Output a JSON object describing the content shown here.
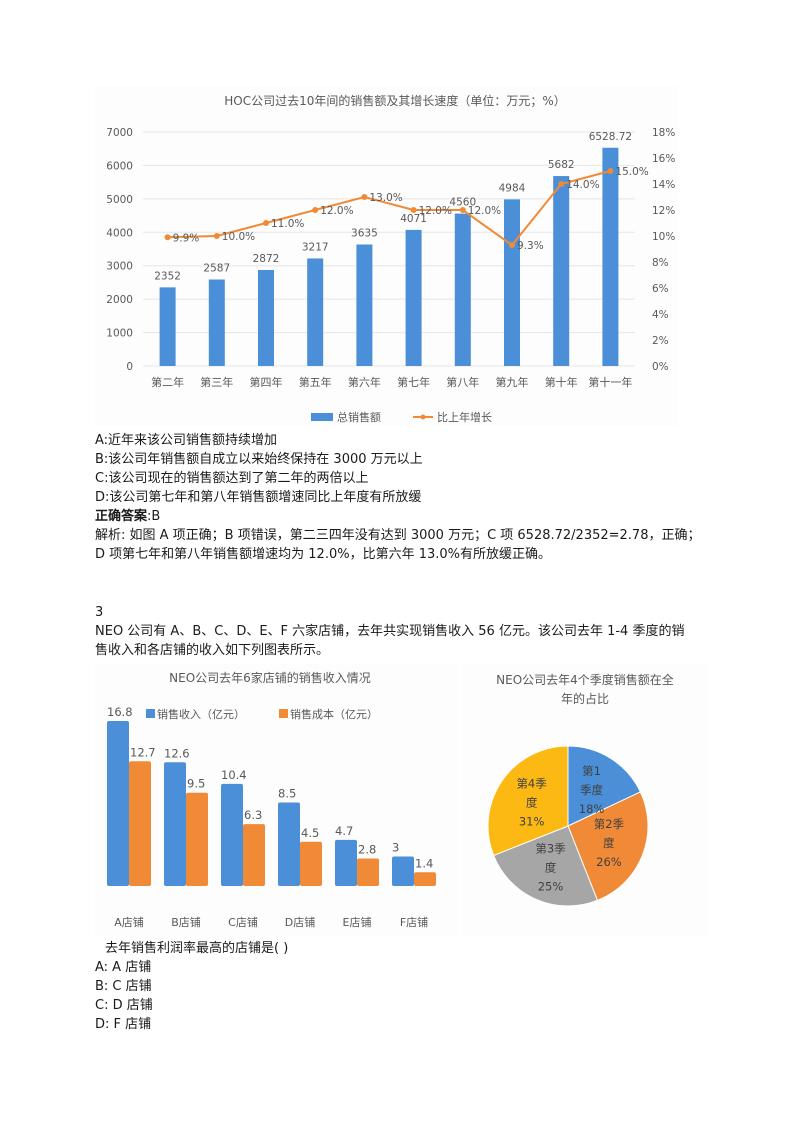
{
  "question2": {
    "chart_title": "HOC公司过去10年间的销售额及其增长速度（单位：万元；%）",
    "options": [
      "A:近年来该公司销售额持续增加",
      "B:该公司年销售额自成立以来始终保持在 3000 万元以上",
      "C:该公司现在的销售额达到了第二年的两倍以上",
      "D:该公司第七年和第八年销售额增速同比上年度有所放缓"
    ],
    "answer_label": "正确答案",
    "answer_value": ":B",
    "analysis_line1": "解析: 如图 A 项正确；B 项错误，第二三四年没有达到 3000 万元；C 项 6528.72/2352=2.78，正确；",
    "analysis_line2": "D 项第七年和第八年销售额增速均为 12.0%，比第六年 13.0%有所放缓正确。"
  },
  "question3": {
    "number": "3",
    "stem_line1": "NEO 公司有 A、B、C、D、E、F 六家店铺，去年共实现销售收入 56 亿元。该公司去年 1-4 季度的销",
    "stem_line2": "售收入和各店铺的收入如下列图表所示。",
    "prompt": "去年销售利润率最高的店铺是( )",
    "options": [
      "A: A 店铺",
      "B: C 店铺",
      "C: D 店铺",
      "D: F 店铺"
    ]
  },
  "colors": {
    "blue": "#4a8fd8",
    "orange": "#f08a36",
    "gray": "#a6a6a6",
    "yellow": "#fdb913",
    "axis_text": "#595959",
    "grid": "#e6e6e6"
  },
  "chart_data": [
    {
      "type": "bar+line",
      "title": "HOC公司过去10年间的销售额及其增长速度（单位：万元；%）",
      "categories": [
        "第二年",
        "第三年",
        "第四年",
        "第五年",
        "第六年",
        "第七年",
        "第八年",
        "第九年",
        "第十年",
        "第十一年"
      ],
      "series": [
        {
          "name": "总销售额",
          "type": "bar",
          "axis": "left",
          "values": [
            2352,
            2587,
            2872,
            3217,
            3635,
            4071,
            4560,
            4984,
            5682,
            6528.72
          ],
          "labels": [
            "2352",
            "2587",
            "2872",
            "3217",
            "3635",
            "4071",
            "4560",
            "4984",
            "5682",
            "6528.72"
          ]
        },
        {
          "name": "比上年增长",
          "type": "line",
          "axis": "right",
          "values": [
            9.9,
            10.0,
            11.0,
            12.0,
            13.0,
            12.0,
            12.0,
            9.3,
            14.0,
            15.0
          ],
          "labels": [
            "9.9%",
            "10.0%",
            "11.0%",
            "12.0%",
            "13.0%",
            "12.0%",
            "12.0%",
            "9.3%",
            "14.0%",
            "15.0%"
          ]
        }
      ],
      "y_left": {
        "ticks": [
          "0",
          "1000",
          "2000",
          "3000",
          "4000",
          "5000",
          "6000",
          "7000"
        ],
        "range": [
          0,
          7000
        ]
      },
      "y_right": {
        "ticks": [
          "0%",
          "2%",
          "4%",
          "6%",
          "8%",
          "10%",
          "12%",
          "14%",
          "16%",
          "18%"
        ],
        "range": [
          0,
          18
        ]
      },
      "legend": [
        "总销售额",
        "比上年增长"
      ],
      "legend_position": "bottom",
      "grid": true
    },
    {
      "type": "bar",
      "title": "NEO公司去年6家店铺的销售收入情况",
      "categories": [
        "A店铺",
        "B店铺",
        "C店铺",
        "D店铺",
        "E店铺",
        "F店铺"
      ],
      "series": [
        {
          "name": "销售收入（亿元）",
          "values": [
            16.8,
            12.6,
            10.4,
            8.5,
            4.7,
            3
          ],
          "labels": [
            "16.8",
            "12.6",
            "10.4",
            "8.5",
            "4.7",
            "3"
          ]
        },
        {
          "name": "销售成本（亿元）",
          "values": [
            12.7,
            9.5,
            6.3,
            4.5,
            2.8,
            1.4
          ],
          "labels": [
            "12.7",
            "9.5",
            "6.3",
            "4.5",
            "2.8",
            "1.4"
          ]
        }
      ],
      "legend": [
        "销售收入（亿元）",
        "销售成本（亿元）"
      ],
      "legend_position": "top",
      "grid": false
    },
    {
      "type": "pie",
      "title": "NEO公司去年4个季度销售额在全年的占比",
      "title_line1": "NEO公司去年4个季度销售额在全",
      "title_line2": "年的占比",
      "categories": [
        "第1季度",
        "第2季度",
        "第3季度",
        "第4季度"
      ],
      "values": [
        18,
        26,
        25,
        31
      ],
      "labels": [
        {
          "l1": "第1",
          "l2": "季度",
          "l3": "18%"
        },
        {
          "l1": "第2季",
          "l2": "度",
          "l3": "26%"
        },
        {
          "l1": "第3季",
          "l2": "度",
          "l3": "25%"
        },
        {
          "l1": "第4季",
          "l2": "度",
          "l3": "31%"
        }
      ]
    }
  ]
}
